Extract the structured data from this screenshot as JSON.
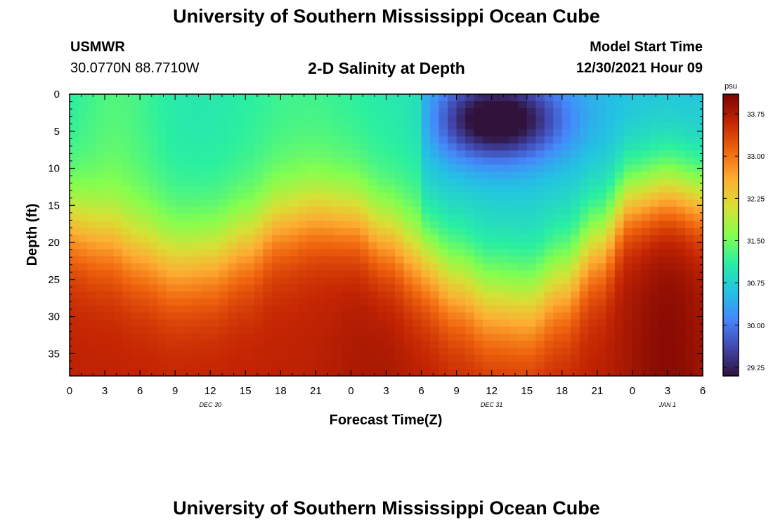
{
  "page": {
    "title": "University of Southern Mississippi Ocean Cube",
    "title_repeat": "University of Southern Mississippi Ocean Cube",
    "station": "USMWR",
    "coords": "30.0770N  88.7710W",
    "plot_title": "2-D Salinity at Depth",
    "start_label": "Model Start Time",
    "start_value": "12/30/2021 Hour 09"
  },
  "chart_data": {
    "type": "heatmap",
    "xlabel": "Forecast Time(Z)",
    "ylabel": "Depth (ft)",
    "x_ticks": [
      "0",
      "3",
      "6",
      "9",
      "12",
      "15",
      "18",
      "21",
      "0",
      "3",
      "6",
      "9",
      "12",
      "15",
      "18",
      "21",
      "0",
      "3",
      "6"
    ],
    "x_range": [
      0,
      54
    ],
    "date_labels": [
      {
        "text": "DEC 30",
        "x_hour": 12
      },
      {
        "text": "DEC 31",
        "x_hour": 36
      },
      {
        "text": "JAN 1",
        "x_hour": 51
      }
    ],
    "y_ticks": [
      "0",
      "5",
      "10",
      "15",
      "20",
      "25",
      "30",
      "35"
    ],
    "y_range": [
      0,
      38
    ],
    "colorbar": {
      "unit": "psu",
      "min": 29.1,
      "max": 34.1,
      "ticks": [
        "33.75",
        "33.00",
        "32.25",
        "31.50",
        "30.75",
        "30.00",
        "29.25"
      ],
      "colors": [
        "#30123b",
        "#4146ac",
        "#4686fb",
        "#23c2e3",
        "#29efa2",
        "#85fe4e",
        "#d8e035",
        "#fdad32",
        "#f0650e",
        "#c42503",
        "#7a0403"
      ]
    },
    "interface_depth_ft": [
      [
        0,
        17.5
      ],
      [
        3,
        19
      ],
      [
        6,
        21
      ],
      [
        9,
        22.5
      ],
      [
        12,
        22
      ],
      [
        15,
        20
      ],
      [
        18,
        17
      ],
      [
        21,
        16
      ],
      [
        24,
        16.5
      ],
      [
        27,
        19
      ],
      [
        30,
        22
      ],
      [
        33,
        25
      ],
      [
        36,
        27.5
      ],
      [
        39,
        28
      ],
      [
        42,
        25
      ],
      [
        45,
        20
      ],
      [
        48,
        14
      ],
      [
        51,
        13
      ],
      [
        54,
        14
      ]
    ],
    "fresh_core": {
      "x_hour": 36.5,
      "depth_ft": 3.5,
      "salinity": 29.25
    }
  }
}
